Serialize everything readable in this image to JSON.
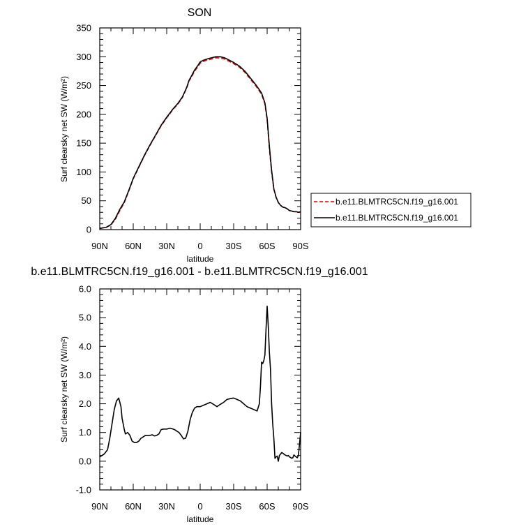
{
  "chart_data": [
    {
      "type": "line",
      "title": "SON",
      "xlabel": "latitude",
      "ylabel": "Surf clearsky net SW (W/m²)",
      "x_ticks": [
        "90N",
        "60N",
        "30N",
        "0",
        "30S",
        "60S",
        "90S"
      ],
      "x_tick_values": [
        -90,
        -60,
        -30,
        0,
        30,
        60,
        90
      ],
      "xlim": [
        -90,
        90
      ],
      "ylim": [
        0,
        350
      ],
      "y_ticks": [
        "0",
        "50",
        "100",
        "150",
        "200",
        "250",
        "300",
        "350"
      ],
      "y_tick_values": [
        0,
        50,
        100,
        150,
        200,
        250,
        300,
        350
      ],
      "legend_position": "right",
      "series": [
        {
          "name": "b.e11.BLMTRC5CN.f19_g16.001",
          "style": "dashed",
          "color": "#dd0000",
          "x": [
            -90,
            -84,
            -80,
            -76,
            -72,
            -68,
            -64,
            -60,
            -55,
            -50,
            -45,
            -40,
            -35,
            -30,
            -28,
            -25,
            -20,
            -16,
            -12,
            -10,
            -8,
            -5,
            -2,
            0,
            3,
            6,
            10,
            14,
            18,
            22,
            26,
            30,
            35,
            40,
            45,
            50,
            55,
            58,
            60,
            62,
            64,
            66,
            68,
            70,
            72,
            74,
            76,
            78,
            80,
            82,
            84,
            86,
            88,
            90
          ],
          "y": [
            2,
            4,
            8,
            18,
            33,
            47,
            67,
            88,
            108,
            128,
            146,
            163,
            180,
            194,
            199,
            207,
            218,
            229,
            246,
            258,
            264,
            275,
            283,
            289,
            292,
            294,
            296,
            298,
            298,
            296,
            292,
            288,
            282,
            273,
            261,
            249,
            235,
            218,
            190,
            140,
            100,
            70,
            56,
            47,
            42,
            39,
            38,
            36,
            33,
            32,
            31,
            31,
            30,
            30
          ]
        },
        {
          "name": "b.e11.BLMTRC5CN.f19_g16.001",
          "style": "solid",
          "color": "#000000",
          "x": [
            -90,
            -84,
            -80,
            -76,
            -72,
            -68,
            -64,
            -60,
            -55,
            -50,
            -45,
            -40,
            -35,
            -30,
            -28,
            -25,
            -20,
            -16,
            -12,
            -10,
            -8,
            -5,
            -2,
            0,
            3,
            6,
            10,
            14,
            18,
            22,
            26,
            30,
            35,
            40,
            45,
            50,
            55,
            58,
            60,
            62,
            64,
            66,
            68,
            70,
            72,
            74,
            76,
            78,
            80,
            82,
            84,
            86,
            88,
            90
          ],
          "y": [
            2.1,
            4.2,
            8.7,
            19.5,
            35.2,
            48.1,
            68,
            89,
            109,
            129,
            147,
            164,
            181,
            195,
            200,
            208,
            219,
            230,
            247,
            259,
            266,
            277,
            285,
            291,
            294,
            296,
            298,
            300,
            300,
            298,
            294,
            290,
            284,
            275,
            263,
            251,
            237,
            219.8,
            193,
            145,
            103,
            71,
            56.3,
            47.2,
            42.1,
            39.2,
            38.2,
            36.1,
            33.1,
            32.2,
            31.2,
            31.1,
            30.1,
            31
          ]
        }
      ]
    },
    {
      "type": "line",
      "title": "b.e11.BLMTRC5CN.f19_g16.001 - b.e11.BLMTRC5CN.f19_g16.001",
      "xlabel": "latitude",
      "ylabel": "Surf clearsky net SW (W/m²)",
      "x_ticks": [
        "90N",
        "60N",
        "30N",
        "0",
        "30S",
        "60S",
        "90S"
      ],
      "x_tick_values": [
        -90,
        -60,
        -30,
        0,
        30,
        60,
        90
      ],
      "xlim": [
        -90,
        90
      ],
      "ylim": [
        -1.0,
        6.0
      ],
      "y_ticks": [
        "-1.0",
        "0.0",
        "1.0",
        "2.0",
        "3.0",
        "4.0",
        "5.0",
        "6.0"
      ],
      "y_tick_values": [
        -1,
        0,
        1,
        2,
        3,
        4,
        5,
        6
      ],
      "series": [
        {
          "name": "",
          "style": "solid",
          "color": "#000000",
          "x": [
            -90,
            -86,
            -83,
            -81,
            -79,
            -77,
            -75,
            -73,
            -71,
            -70,
            -68,
            -67,
            -65,
            -63,
            -61,
            -59,
            -57,
            -55,
            -53,
            -51,
            -49,
            -47,
            -45,
            -43,
            -41,
            -39,
            -37,
            -35,
            -33,
            -30,
            -27,
            -25,
            -23,
            -21,
            -19,
            -17,
            -15,
            -13,
            -11,
            -9,
            -7,
            -5,
            -3,
            0,
            3,
            6,
            9,
            12,
            15,
            18,
            21,
            24,
            27,
            30,
            33,
            36,
            39,
            42,
            45,
            48,
            51,
            53,
            54,
            55,
            56,
            57,
            58,
            59,
            60,
            61,
            62,
            63,
            64,
            65,
            66,
            67,
            68,
            69,
            70,
            71,
            72,
            73,
            74,
            75,
            76,
            77,
            78,
            79,
            80,
            81,
            82,
            83,
            84,
            85,
            86,
            87,
            88,
            89,
            90
          ],
          "y": [
            0.15,
            0.25,
            0.4,
            0.8,
            1.3,
            1.8,
            2.1,
            2.2,
            1.9,
            1.5,
            1.1,
            0.95,
            1.0,
            0.9,
            0.7,
            0.65,
            0.65,
            0.7,
            0.8,
            0.85,
            0.9,
            0.9,
            0.9,
            0.92,
            0.88,
            0.9,
            0.95,
            1.1,
            1.12,
            1.12,
            1.15,
            1.13,
            1.1,
            1.05,
            1.0,
            0.9,
            0.78,
            0.8,
            1.05,
            1.45,
            1.7,
            1.85,
            1.9,
            1.9,
            1.95,
            2.0,
            2.05,
            1.98,
            1.9,
            1.98,
            2.05,
            2.15,
            2.18,
            2.2,
            2.15,
            2.1,
            2.0,
            1.9,
            1.85,
            1.8,
            1.75,
            2.0,
            2.6,
            3.45,
            3.4,
            3.5,
            3.7,
            4.6,
            5.4,
            4.7,
            3.8,
            3.2,
            2.0,
            1.3,
            0.8,
            0.1,
            0.15,
            0.18,
            0.0,
            0.2,
            0.25,
            0.3,
            0.28,
            0.25,
            0.22,
            0.2,
            0.18,
            0.2,
            0.15,
            0.13,
            0.1,
            0.12,
            0.22,
            0.18,
            0.15,
            0.12,
            0.2,
            0.6,
            1.0
          ]
        }
      ]
    }
  ]
}
